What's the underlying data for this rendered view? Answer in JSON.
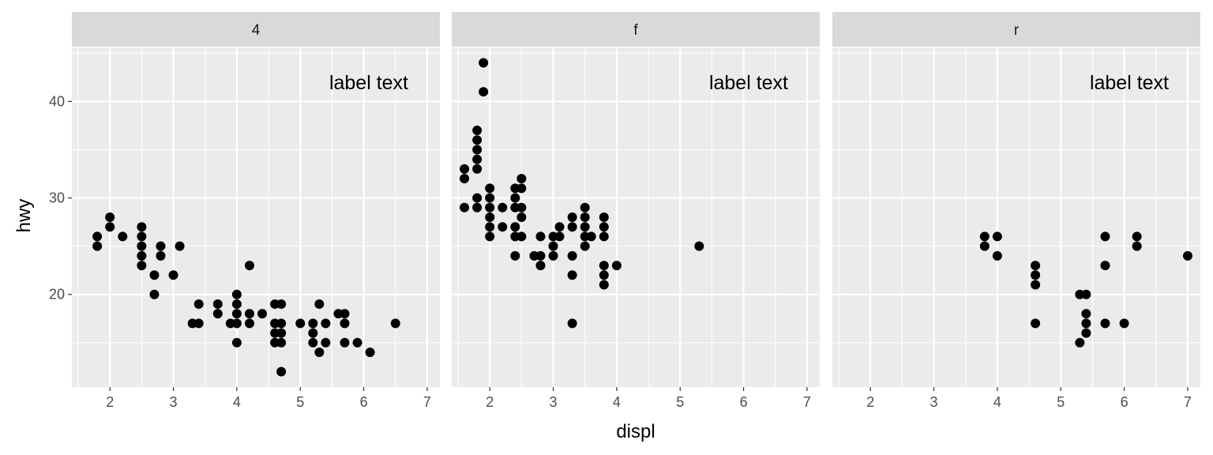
{
  "chart_data": {
    "type": "scatter",
    "xlabel": "displ",
    "ylabel": "hwy",
    "xlim": [
      1.4,
      7.2
    ],
    "ylim": [
      10.4,
      45.6
    ],
    "x_ticks": [
      2,
      3,
      4,
      5,
      6,
      7
    ],
    "y_ticks": [
      20,
      30,
      40
    ],
    "grid": true,
    "colors": {
      "panel_bg": "#EBEBEB",
      "strip_bg": "#D9D9D9",
      "grid": "#FFFFFF",
      "point": "#000000"
    },
    "facets": [
      {
        "label": "4",
        "annotation": "label text",
        "points": [
          [
            1.8,
            26
          ],
          [
            1.8,
            25
          ],
          [
            2.0,
            28
          ],
          [
            2.0,
            27
          ],
          [
            2.2,
            26
          ],
          [
            2.5,
            27
          ],
          [
            2.5,
            26
          ],
          [
            2.5,
            25
          ],
          [
            2.5,
            24
          ],
          [
            2.5,
            23
          ],
          [
            2.7,
            22
          ],
          [
            2.7,
            20
          ],
          [
            2.8,
            25
          ],
          [
            2.8,
            24
          ],
          [
            3.0,
            22
          ],
          [
            3.1,
            25
          ],
          [
            3.3,
            17
          ],
          [
            3.4,
            19
          ],
          [
            3.4,
            17
          ],
          [
            3.7,
            19
          ],
          [
            3.7,
            18
          ],
          [
            3.9,
            17
          ],
          [
            4.0,
            20
          ],
          [
            4.0,
            19
          ],
          [
            4.0,
            18
          ],
          [
            4.0,
            17
          ],
          [
            4.0,
            15
          ],
          [
            4.2,
            23
          ],
          [
            4.2,
            18
          ],
          [
            4.2,
            17
          ],
          [
            4.4,
            18
          ],
          [
            4.6,
            19
          ],
          [
            4.6,
            17
          ],
          [
            4.6,
            16
          ],
          [
            4.6,
            15
          ],
          [
            4.7,
            19
          ],
          [
            4.7,
            17
          ],
          [
            4.7,
            16
          ],
          [
            4.7,
            15
          ],
          [
            4.7,
            12
          ],
          [
            5.0,
            17
          ],
          [
            5.2,
            17
          ],
          [
            5.2,
            16
          ],
          [
            5.2,
            15
          ],
          [
            5.3,
            19
          ],
          [
            5.3,
            14
          ],
          [
            5.4,
            17
          ],
          [
            5.4,
            15
          ],
          [
            5.6,
            18
          ],
          [
            5.7,
            18
          ],
          [
            5.7,
            17
          ],
          [
            5.7,
            15
          ],
          [
            5.9,
            15
          ],
          [
            6.1,
            14
          ],
          [
            6.5,
            17
          ]
        ]
      },
      {
        "label": "f",
        "annotation": "label text",
        "points": [
          [
            1.6,
            33
          ],
          [
            1.6,
            32
          ],
          [
            1.6,
            29
          ],
          [
            1.8,
            37
          ],
          [
            1.8,
            36
          ],
          [
            1.8,
            35
          ],
          [
            1.8,
            34
          ],
          [
            1.8,
            33
          ],
          [
            1.8,
            30
          ],
          [
            1.8,
            29
          ],
          [
            1.9,
            44
          ],
          [
            1.9,
            41
          ],
          [
            2.0,
            31
          ],
          [
            2.0,
            30
          ],
          [
            2.0,
            29
          ],
          [
            2.0,
            28
          ],
          [
            2.0,
            27
          ],
          [
            2.0,
            26
          ],
          [
            2.2,
            29
          ],
          [
            2.2,
            27
          ],
          [
            2.4,
            31
          ],
          [
            2.4,
            30
          ],
          [
            2.4,
            29
          ],
          [
            2.4,
            27
          ],
          [
            2.4,
            26
          ],
          [
            2.4,
            24
          ],
          [
            2.5,
            32
          ],
          [
            2.5,
            31
          ],
          [
            2.5,
            29
          ],
          [
            2.5,
            28
          ],
          [
            2.5,
            26
          ],
          [
            2.7,
            24
          ],
          [
            2.8,
            26
          ],
          [
            2.8,
            24
          ],
          [
            2.8,
            23
          ],
          [
            3.0,
            26
          ],
          [
            3.0,
            25
          ],
          [
            3.0,
            24
          ],
          [
            3.1,
            27
          ],
          [
            3.1,
            26
          ],
          [
            3.3,
            28
          ],
          [
            3.3,
            27
          ],
          [
            3.3,
            24
          ],
          [
            3.3,
            22
          ],
          [
            3.3,
            17
          ],
          [
            3.5,
            29
          ],
          [
            3.5,
            28
          ],
          [
            3.5,
            27
          ],
          [
            3.5,
            26
          ],
          [
            3.5,
            25
          ],
          [
            3.6,
            26
          ],
          [
            3.8,
            28
          ],
          [
            3.8,
            27
          ],
          [
            3.8,
            26
          ],
          [
            3.8,
            23
          ],
          [
            3.8,
            22
          ],
          [
            3.8,
            21
          ],
          [
            4.0,
            23
          ],
          [
            5.3,
            25
          ]
        ]
      },
      {
        "label": "r",
        "annotation": "label text",
        "points": [
          [
            3.8,
            26
          ],
          [
            3.8,
            25
          ],
          [
            4.0,
            26
          ],
          [
            4.0,
            24
          ],
          [
            4.6,
            23
          ],
          [
            4.6,
            22
          ],
          [
            4.6,
            21
          ],
          [
            4.6,
            17
          ],
          [
            5.3,
            20
          ],
          [
            5.3,
            15
          ],
          [
            5.4,
            20
          ],
          [
            5.4,
            18
          ],
          [
            5.4,
            17
          ],
          [
            5.4,
            16
          ],
          [
            5.7,
            26
          ],
          [
            5.7,
            23
          ],
          [
            5.7,
            17
          ],
          [
            6.0,
            17
          ],
          [
            6.2,
            26
          ],
          [
            6.2,
            25
          ],
          [
            7.0,
            24
          ]
        ]
      }
    ]
  }
}
